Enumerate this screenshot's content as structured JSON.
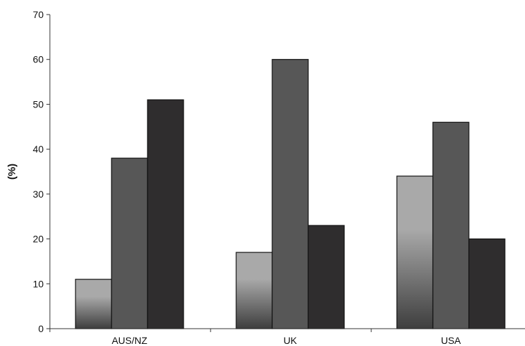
{
  "chart_data": {
    "type": "bar",
    "categories": [
      "AUS/NZ",
      "UK",
      "USA"
    ],
    "series": [
      {
        "values": [
          11,
          17,
          34
        ],
        "color": "#a9a9a9",
        "gradient_bottom": "#3e3e3e"
      },
      {
        "values": [
          38,
          60,
          46
        ],
        "color": "#575757"
      },
      {
        "values": [
          51,
          23,
          20
        ],
        "color": "#2f2d2e"
      }
    ],
    "ylabel": "(%)",
    "xlabel": "",
    "title": "",
    "ylim": [
      0,
      70
    ],
    "yticks": [
      0,
      10,
      20,
      30,
      40,
      50,
      60,
      70
    ],
    "grid": false,
    "legend": "none"
  }
}
